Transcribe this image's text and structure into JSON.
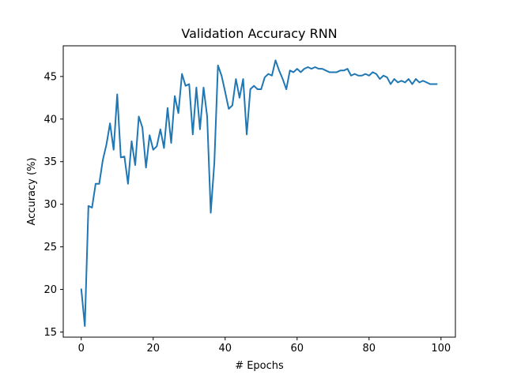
{
  "chart_data": {
    "type": "line",
    "title": "Validation Accuracy RNN",
    "xlabel": "# Epochs",
    "ylabel": "Accuracy (%)",
    "xlim": [
      -5,
      104
    ],
    "ylim": [
      14.4,
      48.6
    ],
    "xticks": [
      0,
      20,
      40,
      60,
      80,
      100
    ],
    "yticks": [
      15,
      20,
      25,
      30,
      35,
      40,
      45
    ],
    "grid": false,
    "legend": "none",
    "series": [
      {
        "color": "#1f77b4",
        "x": [
          0,
          1,
          2,
          3,
          4,
          5,
          6,
          7,
          8,
          9,
          10,
          11,
          12,
          13,
          14,
          15,
          16,
          17,
          18,
          19,
          20,
          21,
          22,
          23,
          24,
          25,
          26,
          27,
          28,
          29,
          30,
          31,
          32,
          33,
          34,
          35,
          36,
          37,
          38,
          39,
          40,
          41,
          42,
          43,
          44,
          45,
          46,
          47,
          48,
          49,
          50,
          51,
          52,
          53,
          54,
          55,
          56,
          57,
          58,
          59,
          60,
          61,
          62,
          63,
          64,
          65,
          66,
          67,
          68,
          69,
          70,
          71,
          72,
          73,
          74,
          75,
          76,
          77,
          78,
          79,
          80,
          81,
          82,
          83,
          84,
          85,
          86,
          87,
          88,
          89,
          90,
          91,
          92,
          93,
          94,
          95,
          96,
          97,
          98,
          99
        ],
        "y": [
          20.1,
          15.7,
          29.8,
          29.6,
          32.4,
          32.4,
          35.2,
          37.0,
          39.5,
          36.4,
          42.9,
          35.5,
          35.6,
          32.4,
          37.4,
          34.6,
          40.3,
          39.0,
          34.3,
          38.1,
          36.4,
          36.8,
          38.8,
          36.6,
          41.3,
          37.2,
          42.7,
          40.7,
          45.3,
          43.9,
          44.1,
          38.2,
          43.7,
          38.8,
          43.7,
          40.3,
          29.0,
          34.9,
          46.3,
          45.1,
          43.2,
          41.2,
          41.6,
          44.7,
          42.5,
          44.7,
          38.2,
          43.5,
          43.9,
          43.5,
          43.5,
          44.9,
          45.3,
          45.1,
          46.9,
          45.7,
          44.7,
          43.5,
          45.7,
          45.5,
          45.9,
          45.5,
          45.9,
          46.1,
          45.9,
          46.1,
          45.9,
          45.9,
          45.7,
          45.5,
          45.5,
          45.5,
          45.7,
          45.7,
          45.9,
          45.1,
          45.3,
          45.1,
          45.1,
          45.3,
          45.1,
          45.5,
          45.3,
          44.7,
          45.1,
          44.9,
          44.1,
          44.7,
          44.3,
          44.5,
          44.3,
          44.7,
          44.1,
          44.7,
          44.3,
          44.5,
          44.3,
          44.1,
          44.1,
          44.1
        ]
      }
    ]
  }
}
